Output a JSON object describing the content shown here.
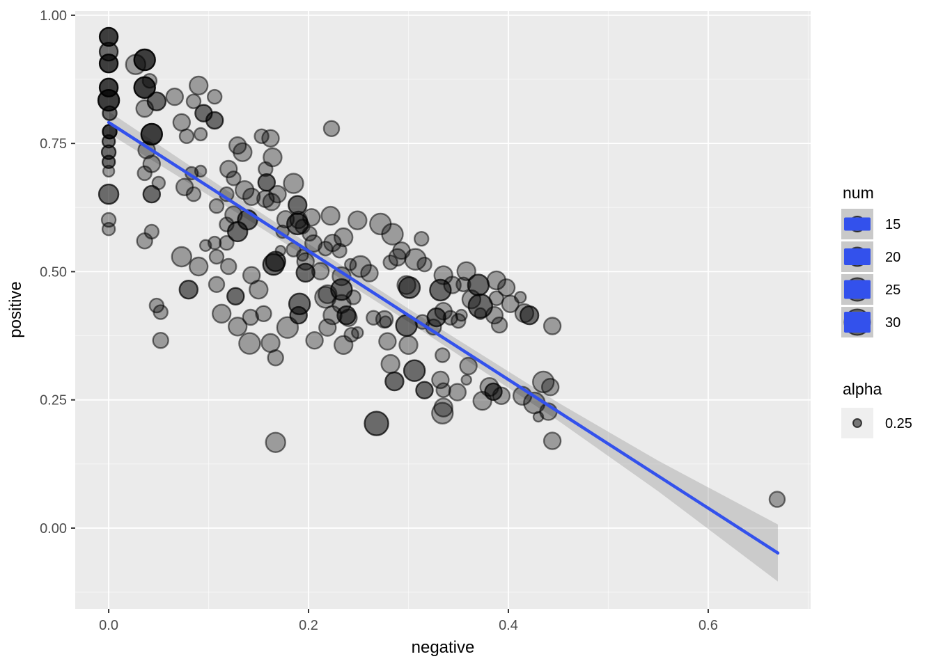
{
  "chart_data": {
    "type": "scatter",
    "title": "",
    "xlabel": "negative",
    "ylabel": "positive",
    "grid": "on",
    "legend_position": "right",
    "xlim": [
      -0.0335,
      0.7025
    ],
    "ylim": [
      -0.1575,
      1.008
    ],
    "x_ticks": {
      "values": [
        0,
        0.2,
        0.4,
        0.6
      ],
      "labels": [
        "0.0",
        "0.2",
        "0.4",
        "0.6"
      ]
    },
    "y_ticks": {
      "values": [
        0,
        0.25,
        0.5,
        0.75,
        1.0
      ],
      "labels": [
        "0.00",
        "0.25",
        "0.50",
        "0.75",
        "1.00"
      ]
    },
    "x_minor": [
      0.1,
      0.3,
      0.5,
      0.7
    ],
    "y_minor": [
      -0.125,
      0.125,
      0.375,
      0.625,
      0.875
    ],
    "colors": {
      "panel": "#EBEBEB",
      "grid_major": "#FFFFFF",
      "grid_minor": "#F5F5F5",
      "point": "#000000",
      "smooth_line": "#3351EC",
      "ribbon": "#999999",
      "tick_label": "#4D4D4D",
      "axis_title": "#000000",
      "tick_mark": "#333333",
      "legend_key_num_bg": "#C9C9C9",
      "legend_key_alpha_bg": "#EFEFEF",
      "legend_text": "#000000"
    },
    "smooth": {
      "x0": 0.0,
      "x1": 0.6697,
      "intercept": 0.791,
      "slope": -1.2537,
      "ribbon_x": [
        0.0,
        0.135,
        0.3,
        0.45,
        0.55,
        0.6697
      ],
      "ribbon_half": [
        0.0215,
        0.015,
        0.0129,
        0.0176,
        0.0298,
        0.0556
      ]
    },
    "points": [
      [
        0.0,
        0.958,
        13,
        3
      ],
      [
        0.0,
        0.929,
        13,
        2
      ],
      [
        0.0,
        0.906,
        13,
        3
      ],
      [
        0.0,
        0.859,
        13,
        3
      ],
      [
        0.0,
        0.834,
        15,
        3
      ],
      [
        0.001,
        0.809,
        10,
        2
      ],
      [
        0.001,
        0.773,
        10,
        3
      ],
      [
        0.0,
        0.754,
        9,
        2
      ],
      [
        0.0,
        0.733,
        10,
        2
      ],
      [
        0.0,
        0.714,
        9,
        2
      ],
      [
        0.0,
        0.696,
        8,
        1
      ],
      [
        0.0,
        0.651,
        14,
        2
      ],
      [
        0.0,
        0.601,
        10,
        1
      ],
      [
        0.0,
        0.583,
        9,
        1
      ],
      [
        0.036,
        0.913,
        15,
        3
      ],
      [
        0.027,
        0.904,
        14,
        1
      ],
      [
        0.041,
        0.872,
        10,
        1
      ],
      [
        0.036,
        0.859,
        15,
        3
      ],
      [
        0.048,
        0.832,
        13,
        2
      ],
      [
        0.036,
        0.818,
        12,
        1
      ],
      [
        0.043,
        0.768,
        15,
        3
      ],
      [
        0.038,
        0.737,
        12,
        1
      ],
      [
        0.043,
        0.71,
        12,
        1
      ],
      [
        0.036,
        0.692,
        10,
        1
      ],
      [
        0.05,
        0.673,
        9,
        1
      ],
      [
        0.043,
        0.651,
        12,
        2
      ],
      [
        0.043,
        0.578,
        10,
        1
      ],
      [
        0.036,
        0.56,
        11,
        1
      ],
      [
        0.048,
        0.434,
        10,
        1
      ],
      [
        0.052,
        0.421,
        10,
        1
      ],
      [
        0.052,
        0.366,
        11,
        1
      ],
      [
        0.066,
        0.841,
        12,
        1
      ],
      [
        0.09,
        0.863,
        13,
        1
      ],
      [
        0.106,
        0.841,
        10,
        1
      ],
      [
        0.085,
        0.832,
        10,
        1
      ],
      [
        0.095,
        0.809,
        12,
        2
      ],
      [
        0.106,
        0.795,
        12,
        2
      ],
      [
        0.073,
        0.791,
        12,
        1
      ],
      [
        0.078,
        0.764,
        10,
        1
      ],
      [
        0.092,
        0.768,
        9,
        1
      ],
      [
        0.083,
        0.692,
        9,
        1
      ],
      [
        0.092,
        0.696,
        8,
        1
      ],
      [
        0.076,
        0.665,
        12,
        1
      ],
      [
        0.085,
        0.651,
        10,
        1
      ],
      [
        0.118,
        0.651,
        10,
        1
      ],
      [
        0.108,
        0.628,
        10,
        1
      ],
      [
        0.125,
        0.611,
        12,
        1
      ],
      [
        0.139,
        0.601,
        14,
        2
      ],
      [
        0.129,
        0.578,
        14,
        2
      ],
      [
        0.118,
        0.592,
        10,
        1
      ],
      [
        0.12,
        0.7,
        12,
        1
      ],
      [
        0.125,
        0.682,
        10,
        1
      ],
      [
        0.136,
        0.659,
        13,
        1
      ],
      [
        0.143,
        0.646,
        12,
        1
      ],
      [
        0.129,
        0.746,
        12,
        1
      ],
      [
        0.134,
        0.733,
        13,
        1
      ],
      [
        0.153,
        0.764,
        10,
        1
      ],
      [
        0.162,
        0.76,
        12,
        1
      ],
      [
        0.164,
        0.723,
        13,
        1
      ],
      [
        0.157,
        0.7,
        10,
        1
      ],
      [
        0.185,
        0.672,
        14,
        1
      ],
      [
        0.169,
        0.651,
        12,
        1
      ],
      [
        0.157,
        0.642,
        12,
        1
      ],
      [
        0.19,
        0.601,
        12,
        1
      ],
      [
        0.194,
        0.588,
        10,
        1
      ],
      [
        0.201,
        0.574,
        10,
        1
      ],
      [
        0.174,
        0.578,
        9,
        1
      ],
      [
        0.167,
        0.52,
        14,
        2
      ],
      [
        0.185,
        0.543,
        10,
        1
      ],
      [
        0.197,
        0.52,
        12,
        1
      ],
      [
        0.197,
        0.498,
        13,
        2
      ],
      [
        0.073,
        0.529,
        14,
        1
      ],
      [
        0.09,
        0.51,
        13,
        1
      ],
      [
        0.108,
        0.529,
        10,
        1
      ],
      [
        0.118,
        0.556,
        10,
        1
      ],
      [
        0.106,
        0.556,
        9,
        1
      ],
      [
        0.097,
        0.551,
        8,
        1
      ],
      [
        0.12,
        0.51,
        11,
        1
      ],
      [
        0.143,
        0.493,
        12,
        1
      ],
      [
        0.15,
        0.465,
        13,
        1
      ],
      [
        0.127,
        0.452,
        12,
        2
      ],
      [
        0.08,
        0.465,
        13,
        2
      ],
      [
        0.108,
        0.475,
        11,
        1
      ],
      [
        0.158,
        0.674,
        12,
        2
      ],
      [
        0.163,
        0.636,
        12,
        1
      ],
      [
        0.189,
        0.63,
        13,
        2
      ],
      [
        0.189,
        0.593,
        15,
        2
      ],
      [
        0.177,
        0.602,
        12,
        1
      ],
      [
        0.203,
        0.606,
        12,
        1
      ],
      [
        0.222,
        0.609,
        13,
        1
      ],
      [
        0.249,
        0.6,
        13,
        1
      ],
      [
        0.272,
        0.593,
        15,
        1
      ],
      [
        0.284,
        0.573,
        15,
        1
      ],
      [
        0.293,
        0.541,
        12,
        1
      ],
      [
        0.313,
        0.564,
        10,
        1
      ],
      [
        0.289,
        0.528,
        12,
        1
      ],
      [
        0.282,
        0.518,
        10,
        1
      ],
      [
        0.307,
        0.524,
        15,
        1
      ],
      [
        0.316,
        0.514,
        10,
        1
      ],
      [
        0.358,
        0.501,
        13,
        1
      ],
      [
        0.344,
        0.474,
        12,
        1
      ],
      [
        0.37,
        0.474,
        15,
        2
      ],
      [
        0.332,
        0.464,
        15,
        2
      ],
      [
        0.298,
        0.474,
        13,
        1
      ],
      [
        0.252,
        0.51,
        15,
        1
      ],
      [
        0.261,
        0.497,
        12,
        1
      ],
      [
        0.233,
        0.491,
        13,
        1
      ],
      [
        0.212,
        0.501,
        12,
        1
      ],
      [
        0.205,
        0.555,
        12,
        1
      ],
      [
        0.217,
        0.545,
        10,
        1
      ],
      [
        0.231,
        0.541,
        10,
        1
      ],
      [
        0.242,
        0.514,
        8,
        1
      ],
      [
        0.194,
        0.532,
        8,
        1
      ],
      [
        0.172,
        0.541,
        7,
        1
      ],
      [
        0.165,
        0.514,
        15,
        2
      ],
      [
        0.191,
        0.437,
        15,
        2
      ],
      [
        0.217,
        0.45,
        15,
        1
      ],
      [
        0.233,
        0.437,
        13,
        1
      ],
      [
        0.245,
        0.45,
        10,
        1
      ],
      [
        0.224,
        0.415,
        13,
        1
      ],
      [
        0.24,
        0.41,
        12,
        1
      ],
      [
        0.265,
        0.41,
        10,
        1
      ],
      [
        0.277,
        0.402,
        8,
        1
      ],
      [
        0.388,
        0.483,
        13,
        1
      ],
      [
        0.398,
        0.469,
        12,
        1
      ],
      [
        0.363,
        0.446,
        13,
        1
      ],
      [
        0.372,
        0.433,
        17,
        2
      ],
      [
        0.402,
        0.437,
        12,
        1
      ],
      [
        0.412,
        0.45,
        8,
        1
      ],
      [
        0.416,
        0.419,
        13,
        1
      ],
      [
        0.386,
        0.415,
        12,
        1
      ],
      [
        0.335,
        0.423,
        12,
        1
      ],
      [
        0.342,
        0.41,
        10,
        1
      ],
      [
        0.421,
        0.415,
        13,
        2
      ],
      [
        0.314,
        0.402,
        10,
        1
      ],
      [
        0.325,
        0.392,
        11,
        1
      ],
      [
        0.391,
        0.396,
        11,
        1
      ],
      [
        0.223,
        0.779,
        11,
        1
      ],
      [
        0.235,
        0.567,
        13,
        1
      ],
      [
        0.224,
        0.556,
        12,
        1
      ],
      [
        0.335,
        0.493,
        13,
        1
      ],
      [
        0.355,
        0.475,
        10,
        1
      ],
      [
        0.388,
        0.448,
        10,
        1
      ],
      [
        0.233,
        0.465,
        15,
        2
      ],
      [
        0.219,
        0.456,
        13,
        1
      ],
      [
        0.301,
        0.469,
        15,
        2
      ],
      [
        0.219,
        0.391,
        12,
        1
      ],
      [
        0.238,
        0.415,
        13,
        2
      ],
      [
        0.243,
        0.377,
        10,
        1
      ],
      [
        0.249,
        0.381,
        8,
        1
      ],
      [
        0.235,
        0.357,
        13,
        1
      ],
      [
        0.276,
        0.407,
        12,
        1
      ],
      [
        0.279,
        0.364,
        12,
        1
      ],
      [
        0.298,
        0.395,
        15,
        2
      ],
      [
        0.3,
        0.357,
        13,
        1
      ],
      [
        0.328,
        0.411,
        13,
        2
      ],
      [
        0.35,
        0.404,
        10,
        1
      ],
      [
        0.353,
        0.415,
        8,
        1
      ],
      [
        0.372,
        0.418,
        8,
        1
      ],
      [
        0.334,
        0.337,
        10,
        1
      ],
      [
        0.36,
        0.316,
        12,
        1
      ],
      [
        0.282,
        0.32,
        13,
        1
      ],
      [
        0.306,
        0.307,
        15,
        2
      ],
      [
        0.286,
        0.286,
        13,
        2
      ],
      [
        0.316,
        0.269,
        12,
        2
      ],
      [
        0.332,
        0.289,
        12,
        1
      ],
      [
        0.335,
        0.269,
        10,
        1
      ],
      [
        0.349,
        0.265,
        12,
        1
      ],
      [
        0.358,
        0.289,
        7,
        1
      ],
      [
        0.381,
        0.275,
        13,
        1
      ],
      [
        0.385,
        0.266,
        12,
        2
      ],
      [
        0.393,
        0.258,
        12,
        1
      ],
      [
        0.374,
        0.248,
        13,
        1
      ],
      [
        0.335,
        0.235,
        13,
        1
      ],
      [
        0.334,
        0.224,
        15,
        1
      ],
      [
        0.268,
        0.204,
        17,
        2
      ],
      [
        0.444,
        0.394,
        12,
        1
      ],
      [
        0.414,
        0.258,
        13,
        1
      ],
      [
        0.426,
        0.244,
        15,
        1
      ],
      [
        0.435,
        0.285,
        15,
        1
      ],
      [
        0.442,
        0.275,
        12,
        1
      ],
      [
        0.43,
        0.217,
        7,
        1
      ],
      [
        0.444,
        0.17,
        12,
        1
      ],
      [
        0.44,
        0.227,
        12,
        1
      ],
      [
        0.113,
        0.418,
        13,
        1
      ],
      [
        0.129,
        0.393,
        13,
        1
      ],
      [
        0.142,
        0.411,
        11,
        1
      ],
      [
        0.155,
        0.418,
        11,
        1
      ],
      [
        0.141,
        0.36,
        15,
        1
      ],
      [
        0.162,
        0.361,
        13,
        1
      ],
      [
        0.167,
        0.332,
        11,
        1
      ],
      [
        0.179,
        0.391,
        15,
        1
      ],
      [
        0.19,
        0.415,
        12,
        2
      ],
      [
        0.206,
        0.366,
        12,
        1
      ],
      [
        0.167,
        0.167,
        14,
        1
      ],
      [
        0.669,
        0.056,
        11,
        1
      ]
    ],
    "opacity_classes": {
      "1": 0.34,
      "2": 0.55,
      "3": 0.74
    }
  },
  "legend": {
    "num": {
      "title": "num",
      "entries": [
        {
          "label": "15",
          "circle_r": 11,
          "rect_h": 19
        },
        {
          "label": "20",
          "circle_r": 13.5,
          "rect_h": 24
        },
        {
          "label": "25",
          "circle_r": 16.5,
          "rect_h": 27
        },
        {
          "label": "30",
          "circle_r": 18.5,
          "rect_h": 30
        }
      ]
    },
    "alpha": {
      "title": "alpha",
      "entries": [
        {
          "label": "0.25",
          "circle_r": 6
        }
      ]
    }
  }
}
